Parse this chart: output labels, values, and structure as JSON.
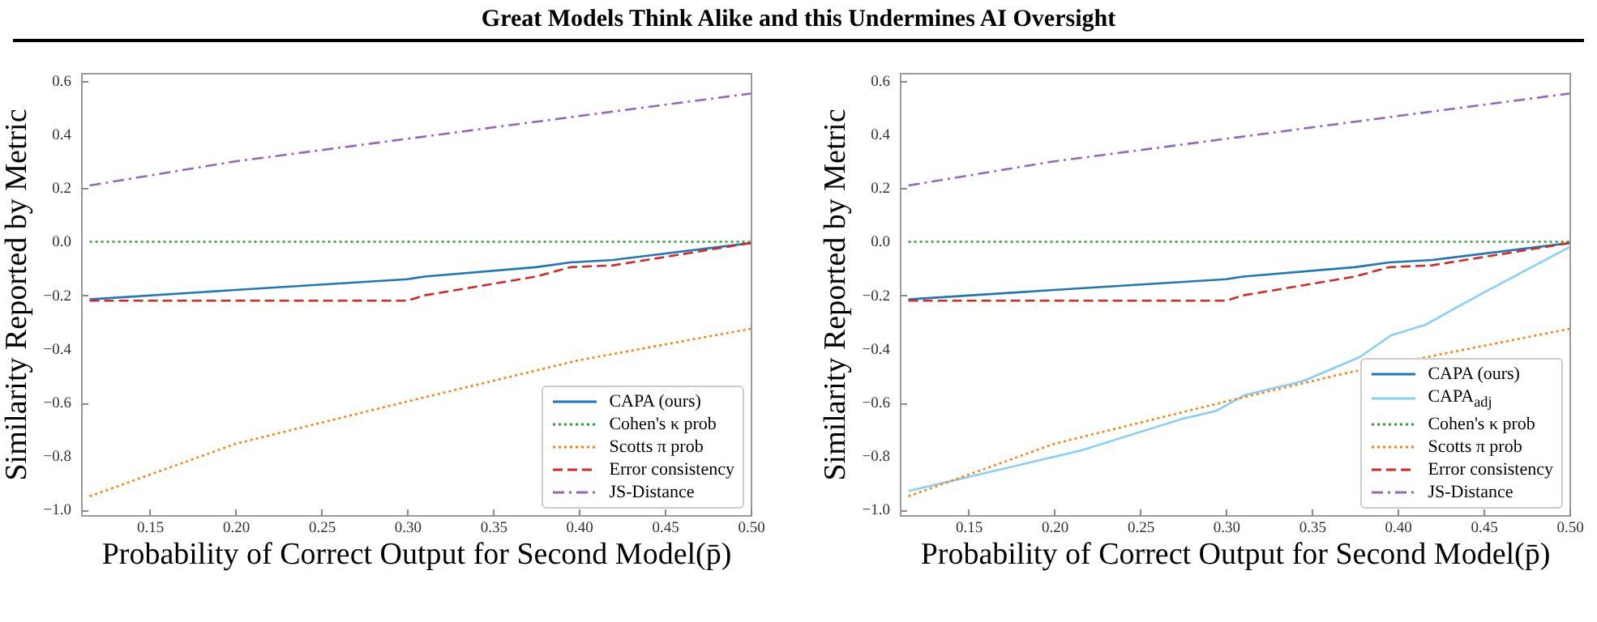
{
  "chart_data": [
    {
      "type": "line",
      "title": "Great Models Think Alike and this Undermines AI Oversight",
      "xlabel": "Probability of Correct Output for Second Model(p̄)",
      "ylabel": "Similarity Reported by Metric",
      "xlim": [
        0.11,
        0.5
      ],
      "ylim": [
        -1.02,
        0.63
      ],
      "xticks": [
        {
          "value": 0.15,
          "label": "0.15"
        },
        {
          "value": 0.2,
          "label": "0.20"
        },
        {
          "value": 0.25,
          "label": "0.25"
        },
        {
          "value": 0.3,
          "label": "0.30"
        },
        {
          "value": 0.35,
          "label": "0.35"
        },
        {
          "value": 0.4,
          "label": "0.40"
        },
        {
          "value": 0.45,
          "label": "0.45"
        },
        {
          "value": 0.5,
          "label": "0.50"
        }
      ],
      "yticks": [
        {
          "value": -1,
          "label": "−1.0"
        },
        {
          "value": -0.8,
          "label": "−0.8"
        },
        {
          "value": -0.6,
          "label": "−0.6"
        },
        {
          "value": -0.4,
          "label": "−0.4"
        },
        {
          "value": -0.2,
          "label": "−0.2"
        },
        {
          "value": 0,
          "label": "0.0"
        },
        {
          "value": 0.2,
          "label": "0.2"
        },
        {
          "value": 0.4,
          "label": "0.4"
        },
        {
          "value": 0.6,
          "label": "0.6"
        }
      ],
      "legend": "bottom right",
      "series": [
        {
          "name": "CAPA (ours)",
          "color": "#1f77b4",
          "line_style": "solid",
          "x": [
            0.115,
            0.2,
            0.3,
            0.31,
            0.375,
            0.395,
            0.42,
            0.5
          ],
          "values": [
            -0.215,
            -0.18,
            -0.14,
            -0.13,
            -0.095,
            -0.077,
            -0.068,
            -0.005
          ]
        },
        {
          "name": "Cohen's κ prob",
          "color": "#2ca02c",
          "line_style": "dotted",
          "x": [
            0.115,
            0.5
          ],
          "values": [
            0,
            0
          ]
        },
        {
          "name": "Scotts π prob",
          "color": "#ff7f0e",
          "line_style": "dotted",
          "x": [
            0.115,
            0.2,
            0.3,
            0.4,
            0.5
          ],
          "values": [
            -0.95,
            -0.754,
            -0.596,
            -0.442,
            -0.325
          ]
        },
        {
          "name": "Error consistency",
          "color": "#d62728",
          "line_style": "dashed",
          "x": [
            0.115,
            0.3,
            0.31,
            0.375,
            0.395,
            0.42,
            0.5
          ],
          "values": [
            -0.22,
            -0.22,
            -0.2,
            -0.13,
            -0.095,
            -0.088,
            -0.005
          ]
        },
        {
          "name": "JS-Distance",
          "color": "#9467bd",
          "line_style": "dashdot",
          "x": [
            0.115,
            0.2,
            0.3,
            0.4,
            0.5
          ],
          "values": [
            0.21,
            0.3,
            0.384,
            0.469,
            0.553
          ]
        }
      ]
    },
    {
      "type": "line",
      "xlabel": "Probability of Correct Output for Second Model(p̄)",
      "ylabel": "Similarity Reported by Metric",
      "xlim": [
        0.11,
        0.5
      ],
      "ylim": [
        -1.02,
        0.63
      ],
      "xticks": [
        {
          "value": 0.15,
          "label": "0.15"
        },
        {
          "value": 0.2,
          "label": "0.20"
        },
        {
          "value": 0.25,
          "label": "0.25"
        },
        {
          "value": 0.3,
          "label": "0.30"
        },
        {
          "value": 0.35,
          "label": "0.35"
        },
        {
          "value": 0.4,
          "label": "0.40"
        },
        {
          "value": 0.45,
          "label": "0.45"
        },
        {
          "value": 0.5,
          "label": "0.50"
        }
      ],
      "yticks": [
        {
          "value": -1,
          "label": "−1.0"
        },
        {
          "value": -0.8,
          "label": "−0.8"
        },
        {
          "value": -0.6,
          "label": "−0.6"
        },
        {
          "value": -0.4,
          "label": "−0.4"
        },
        {
          "value": -0.2,
          "label": "−0.2"
        },
        {
          "value": 0,
          "label": "0.0"
        },
        {
          "value": 0.2,
          "label": "0.2"
        },
        {
          "value": 0.4,
          "label": "0.4"
        },
        {
          "value": 0.6,
          "label": "0.6"
        }
      ],
      "legend": "bottom right",
      "series": [
        {
          "name": "CAPA (ours)",
          "color": "#1f77b4",
          "line_style": "solid",
          "x": [
            0.115,
            0.2,
            0.3,
            0.31,
            0.375,
            0.395,
            0.42,
            0.5
          ],
          "values": [
            -0.215,
            -0.18,
            -0.14,
            -0.13,
            -0.095,
            -0.077,
            -0.068,
            -0.005
          ]
        },
        {
          "name": "CAPA$_{adj}$",
          "color": "#87cefa",
          "line_style": "solid",
          "x": [
            0.115,
            0.215,
            0.275,
            0.294,
            0.311,
            0.345,
            0.378,
            0.396,
            0.416,
            0.45,
            0.5
          ],
          "values": [
            -0.93,
            -0.78,
            -0.66,
            -0.632,
            -0.572,
            -0.52,
            -0.43,
            -0.35,
            -0.31,
            -0.19,
            -0.02
          ]
        },
        {
          "name": "Cohen's κ prob",
          "color": "#2ca02c",
          "line_style": "dotted",
          "x": [
            0.115,
            0.5
          ],
          "values": [
            0,
            0
          ]
        },
        {
          "name": "Scotts π prob",
          "color": "#ff7f0e",
          "line_style": "dotted",
          "x": [
            0.115,
            0.2,
            0.3,
            0.37,
            0.5
          ],
          "values": [
            -0.95,
            -0.754,
            -0.596,
            -0.49,
            -0.325
          ]
        },
        {
          "name": "Error consistency",
          "color": "#d62728",
          "line_style": "dashed",
          "x": [
            0.115,
            0.3,
            0.31,
            0.375,
            0.395,
            0.42,
            0.5
          ],
          "values": [
            -0.22,
            -0.22,
            -0.2,
            -0.13,
            -0.095,
            -0.088,
            -0.005
          ]
        },
        {
          "name": "JS-Distance",
          "color": "#9467bd",
          "line_style": "dashdot",
          "x": [
            0.115,
            0.2,
            0.3,
            0.4,
            0.5
          ],
          "values": [
            0.21,
            0.3,
            0.384,
            0.469,
            0.553
          ]
        }
      ]
    }
  ]
}
